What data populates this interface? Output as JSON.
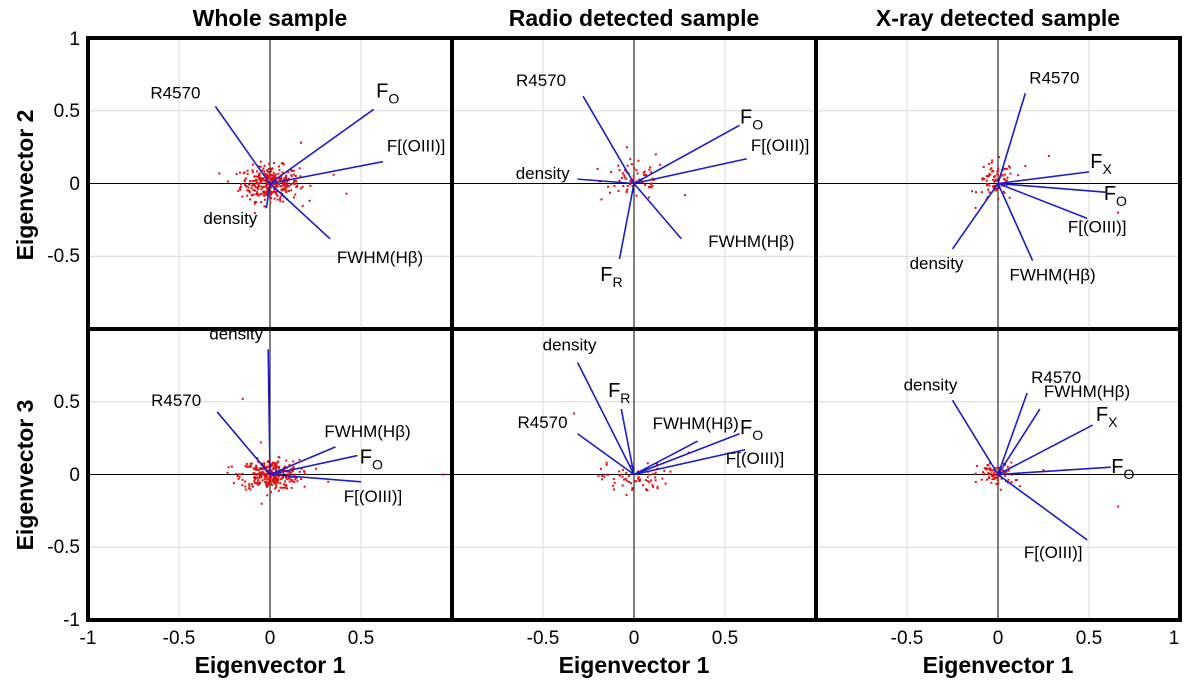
{
  "figure": {
    "column_titles": [
      "Whole sample",
      "Radio detected sample",
      "X-ray detected sample"
    ],
    "xlabel": "Eigenvector 1",
    "row_ylabels": [
      "Eigenvector 2",
      "Eigenvector 3"
    ],
    "xticks": [
      "-1",
      "-0.5",
      "0",
      "0.5",
      "1"
    ],
    "yticks_top": [
      "1",
      "0.5",
      "0",
      "-0.5"
    ],
    "yticks_bottom": [
      "0.5",
      "0",
      "-0.5",
      "-1"
    ]
  },
  "colors": {
    "vector": "#1c1cc8",
    "point": "#e01010",
    "grid": "#d9d9d9",
    "frame": "#000000"
  },
  "chart_data": [
    {
      "type": "scatter",
      "panel": "Whole sample / EV1 vs EV2",
      "xlabel": "Eigenvector 1",
      "ylabel": "Eigenvector 2",
      "xlim": [
        -1,
        1
      ],
      "ylim": [
        -1,
        1
      ],
      "vectors": [
        {
          "label": "R4570",
          "x": -0.03,
          "y": 0.05,
          "tip": [
            -0.3,
            0.53
          ]
        },
        {
          "label": "F",
          "sub": "O",
          "x": 0.57,
          "y": 0.51
        },
        {
          "label": "F[(OIII)]",
          "x": 0.62,
          "y": 0.15
        },
        {
          "label": "density",
          "x": -0.02,
          "y": -0.17
        },
        {
          "label": "FWHM(Hβ)",
          "x": 0.33,
          "y": -0.38
        }
      ],
      "points": {
        "count": 320,
        "center": [
          0.0,
          0.0
        ],
        "spread": [
          0.08,
          0.06
        ],
        "extremes": [
          [
            0.17,
            0.28
          ],
          [
            0.42,
            -0.07
          ],
          [
            0.35,
            0.06
          ],
          [
            -0.1,
            -0.08
          ]
        ]
      }
    },
    {
      "type": "scatter",
      "panel": "Radio detected sample / EV1 vs EV2",
      "xlabel": "Eigenvector 1",
      "ylabel": "Eigenvector 2",
      "xlim": [
        -1,
        1
      ],
      "ylim": [
        -1,
        1
      ],
      "vectors": [
        {
          "label": "R4570",
          "x": -0.28,
          "y": 0.6
        },
        {
          "label": "F",
          "sub": "O",
          "x": 0.58,
          "y": 0.4
        },
        {
          "label": "F[(OIII)]",
          "x": 0.62,
          "y": 0.17
        },
        {
          "label": "density",
          "x": -0.31,
          "y": 0.03
        },
        {
          "label": "F",
          "sub": "R",
          "x": -0.08,
          "y": -0.52
        },
        {
          "label": "FWHM(Hβ)",
          "x": 0.26,
          "y": -0.38
        }
      ],
      "points": {
        "count": 70,
        "center": [
          0.0,
          0.02
        ],
        "spread": [
          0.09,
          0.07
        ],
        "extremes": [
          [
            0.12,
            0.2
          ],
          [
            -0.2,
            0.1
          ],
          [
            0.28,
            -0.08
          ]
        ]
      }
    },
    {
      "type": "scatter",
      "panel": "X-ray detected sample / EV1 vs EV2",
      "xlabel": "Eigenvector 1",
      "ylabel": "Eigenvector 2",
      "xlim": [
        -1,
        1
      ],
      "ylim": [
        -1,
        1
      ],
      "vectors": [
        {
          "label": "R4570",
          "x": 0.15,
          "y": 0.62
        },
        {
          "label": "F",
          "sub": "X",
          "x": 0.5,
          "y": 0.08
        },
        {
          "label": "F",
          "sub": "O",
          "x": 0.59,
          "y": -0.06
        },
        {
          "label": "F[(OIII)]",
          "x": 0.49,
          "y": -0.24
        },
        {
          "label": "density",
          "x": -0.25,
          "y": -0.45
        },
        {
          "label": "FWHM(Hβ)",
          "x": 0.19,
          "y": -0.53
        }
      ],
      "points": {
        "count": 75,
        "center": [
          -0.01,
          0.01
        ],
        "spread": [
          0.05,
          0.07
        ],
        "extremes": [
          [
            0.28,
            0.19
          ],
          [
            0.66,
            -0.2
          ],
          [
            0.15,
            0.12
          ]
        ]
      }
    },
    {
      "type": "scatter",
      "panel": "Whole sample / EV1 vs EV3",
      "xlabel": "Eigenvector 1",
      "ylabel": "Eigenvector 3",
      "xlim": [
        -1,
        1
      ],
      "ylim": [
        -1,
        1
      ],
      "vectors": [
        {
          "label": "density",
          "x": -0.01,
          "y": 0.86
        },
        {
          "label": "R4570",
          "x": -0.29,
          "y": 0.43
        },
        {
          "label": "FWHM(Hβ)",
          "x": 0.36,
          "y": 0.19
        },
        {
          "label": "F",
          "sub": "O",
          "x": 0.48,
          "y": 0.13
        },
        {
          "label": "F[(OIII)]",
          "x": 0.5,
          "y": -0.05
        }
      ],
      "points": {
        "count": 320,
        "center": [
          0.0,
          0.0
        ],
        "spread": [
          0.08,
          0.05
        ],
        "extremes": [
          [
            -0.15,
            0.52
          ],
          [
            0.95,
            0.0
          ],
          [
            0.32,
            -0.05
          ],
          [
            -0.05,
            0.22
          ]
        ]
      }
    },
    {
      "type": "scatter",
      "panel": "Radio detected sample / EV1 vs EV3",
      "xlabel": "Eigenvector 1",
      "ylabel": "Eigenvector 3",
      "xlim": [
        -1,
        1
      ],
      "ylim": [
        -1,
        1
      ],
      "vectors": [
        {
          "label": "density",
          "x": -0.31,
          "y": 0.77
        },
        {
          "label": "F",
          "sub": "R",
          "x": -0.07,
          "y": 0.45
        },
        {
          "label": "R4570",
          "x": -0.31,
          "y": 0.28
        },
        {
          "label": "FWHM(Hβ)",
          "x": 0.35,
          "y": 0.23
        },
        {
          "label": "F",
          "sub": "O",
          "x": 0.58,
          "y": 0.28
        },
        {
          "label": "F[(OIII)]",
          "x": 0.61,
          "y": 0.17
        }
      ],
      "points": {
        "count": 70,
        "center": [
          0.0,
          -0.03
        ],
        "spread": [
          0.09,
          0.05
        ],
        "extremes": [
          [
            -0.33,
            0.42
          ],
          [
            0.3,
            0.15
          ],
          [
            -0.15,
            0.08
          ]
        ]
      }
    },
    {
      "type": "scatter",
      "panel": "X-ray detected sample / EV1 vs EV3",
      "xlabel": "Eigenvector 1",
      "ylabel": "Eigenvector 3",
      "xlim": [
        -1,
        1
      ],
      "ylim": [
        -1,
        1
      ],
      "vectors": [
        {
          "label": "density",
          "x": -0.25,
          "y": 0.51
        },
        {
          "label": "R4570",
          "x": 0.16,
          "y": 0.56
        },
        {
          "label": "FWHM(Hβ)",
          "x": 0.23,
          "y": 0.45
        },
        {
          "label": "F",
          "sub": "X",
          "x": 0.52,
          "y": 0.34
        },
        {
          "label": "F",
          "sub": "O",
          "x": 0.62,
          "y": 0.05
        },
        {
          "label": "F[(OIII)]",
          "x": 0.49,
          "y": -0.45
        }
      ],
      "points": {
        "count": 75,
        "center": [
          -0.01,
          0.0
        ],
        "spread": [
          0.05,
          0.04
        ],
        "extremes": [
          [
            0.66,
            -0.22
          ],
          [
            0.25,
            0.03
          ],
          [
            0.12,
            -0.08
          ]
        ]
      }
    }
  ]
}
